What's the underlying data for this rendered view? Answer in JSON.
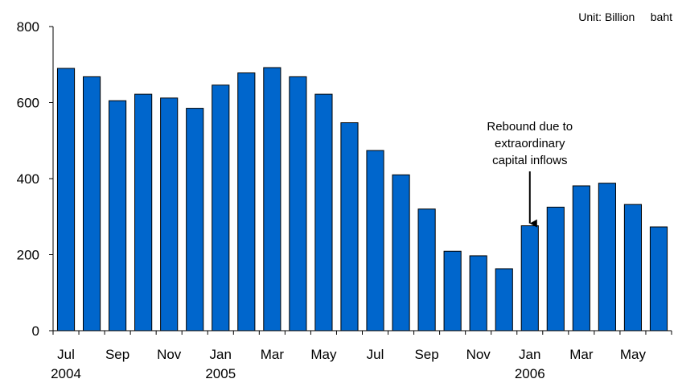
{
  "chart_data": {
    "type": "bar",
    "title": "",
    "xlabel": "",
    "ylabel": "",
    "unit_label": "Unit: Billion     baht",
    "categories": [
      "Jul 2004",
      "Aug 2004",
      "Sep 2004",
      "Oct 2004",
      "Nov 2004",
      "Dec 2004",
      "Jan 2005",
      "Feb 2005",
      "Mar 2005",
      "Apr 2005",
      "May 2005",
      "Jun 2005",
      "Jul 2005",
      "Aug 2005",
      "Sep 2005",
      "Oct 2005",
      "Nov 2005",
      "Dec 2005",
      "Jan 2006",
      "Feb 2006",
      "Mar 2006",
      "Apr 2006",
      "May 2006",
      "Jun 2006"
    ],
    "values": [
      690,
      668,
      605,
      622,
      612,
      585,
      646,
      678,
      692,
      668,
      622,
      547,
      474,
      410,
      320,
      209,
      197,
      163,
      276,
      325,
      381,
      388,
      332,
      273
    ],
    "ylim": [
      0,
      800
    ],
    "yticks": [
      "0",
      "200",
      "400",
      "600",
      "800"
    ],
    "xtick_labels": [
      {
        "index": 0,
        "month": "Jul",
        "year": "2004"
      },
      {
        "index": 2,
        "month": "Sep",
        "year": ""
      },
      {
        "index": 4,
        "month": "Nov",
        "year": ""
      },
      {
        "index": 6,
        "month": "Jan",
        "year": "2005"
      },
      {
        "index": 8,
        "month": "Mar",
        "year": ""
      },
      {
        "index": 10,
        "month": "May",
        "year": ""
      },
      {
        "index": 12,
        "month": "Jul",
        "year": ""
      },
      {
        "index": 14,
        "month": "Sep",
        "year": ""
      },
      {
        "index": 16,
        "month": "Nov",
        "year": ""
      },
      {
        "index": 18,
        "month": "Jan",
        "year": "2006"
      },
      {
        "index": 20,
        "month": "Mar",
        "year": ""
      },
      {
        "index": 22,
        "month": "May",
        "year": ""
      }
    ],
    "annotation": {
      "lines": [
        "Rebound due to",
        "extraordinary",
        "capital inflows"
      ],
      "target_index": 18
    },
    "bar_color": "#0066CC",
    "bar_stroke": "#000000",
    "grid": false,
    "legend": "none"
  }
}
